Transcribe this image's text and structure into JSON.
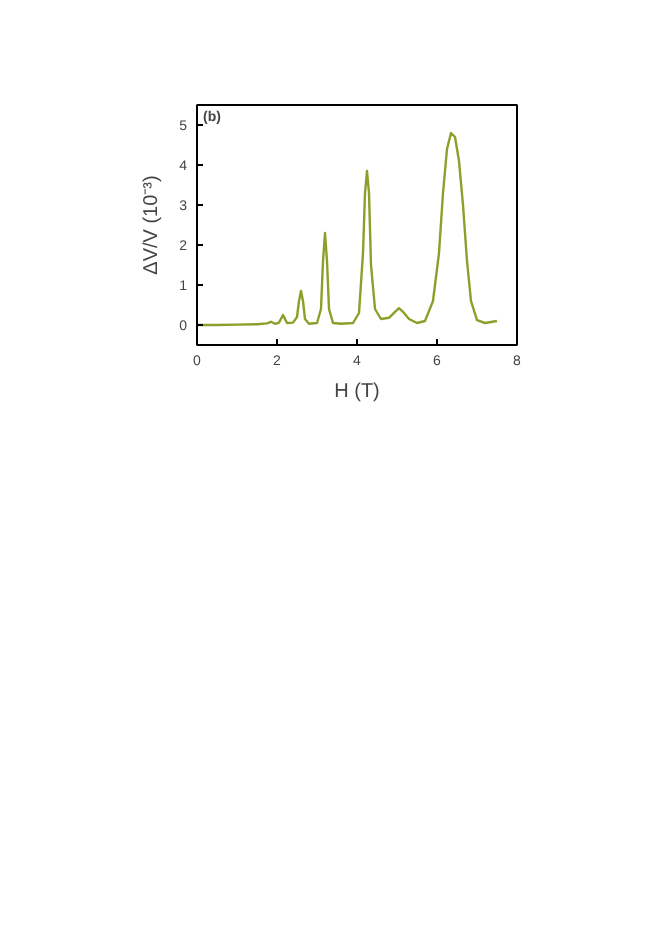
{
  "chart_data": {
    "type": "line",
    "xlabel": "H (T)",
    "ylabel": "ΔV/V (10⁻³)",
    "annotations": [
      "(b)"
    ],
    "xlim": [
      0,
      8
    ],
    "ylim": [
      -0.5,
      5.5
    ],
    "xticks": [
      0,
      2,
      4,
      6,
      8
    ],
    "yticks": [
      0,
      1,
      2,
      3,
      4,
      5
    ],
    "grid": false,
    "series": [
      {
        "color": "#8aa02a",
        "x": [
          0,
          0.5,
          1.0,
          1.5,
          1.75,
          1.85,
          1.95,
          2.05,
          2.15,
          2.25,
          2.4,
          2.5,
          2.55,
          2.6,
          2.65,
          2.7,
          2.8,
          3.0,
          3.1,
          3.15,
          3.2,
          3.25,
          3.3,
          3.4,
          3.6,
          3.9,
          4.05,
          4.15,
          4.2,
          4.25,
          4.3,
          4.35,
          4.45,
          4.6,
          4.8,
          4.95,
          5.05,
          5.15,
          5.3,
          5.5,
          5.7,
          5.9,
          6.05,
          6.15,
          6.25,
          6.35,
          6.45,
          6.55,
          6.65,
          6.75,
          6.85,
          7.0,
          7.2,
          7.5
        ],
        "values": [
          0,
          0,
          0.01,
          0.02,
          0.04,
          0.08,
          0.03,
          0.06,
          0.25,
          0.05,
          0.06,
          0.2,
          0.6,
          0.85,
          0.6,
          0.15,
          0.03,
          0.05,
          0.4,
          1.6,
          2.3,
          1.6,
          0.4,
          0.05,
          0.03,
          0.05,
          0.3,
          1.8,
          3.3,
          3.85,
          3.3,
          1.5,
          0.4,
          0.15,
          0.18,
          0.33,
          0.42,
          0.33,
          0.15,
          0.05,
          0.1,
          0.6,
          1.8,
          3.3,
          4.4,
          4.8,
          4.7,
          4.1,
          3.0,
          1.6,
          0.6,
          0.12,
          0.05,
          0.1
        ]
      }
    ]
  }
}
